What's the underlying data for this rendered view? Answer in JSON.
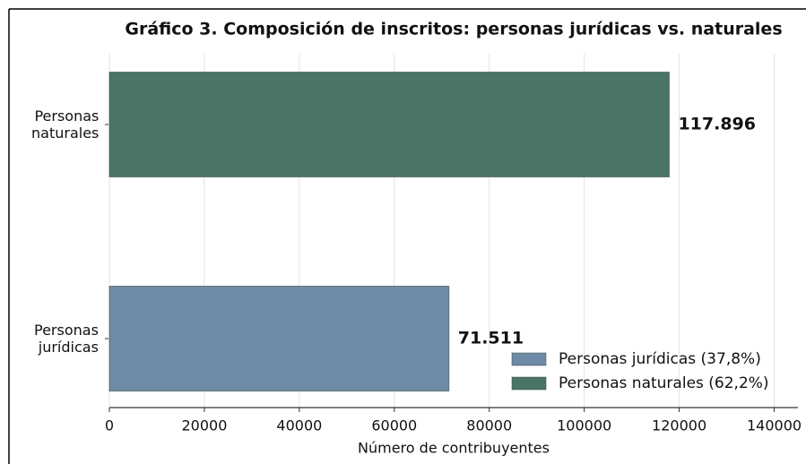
{
  "chart_data": {
    "type": "barh",
    "title": "Gráfico 3. Composición de inscritos: personas jurídicas vs. naturales",
    "categories": [
      "Personas jurídicas",
      "Personas naturales"
    ],
    "values": [
      71511,
      117896
    ],
    "value_labels": [
      "71.511",
      "117.896"
    ],
    "colors": [
      "#6f8aa6",
      "#4a7566"
    ],
    "legend": [
      "Personas jurídicas (37,8%)",
      "Personas naturales (62,2%)"
    ],
    "xlabel": "Número de contribuyentes",
    "xlim": [
      0,
      145000
    ],
    "xticks": [
      0,
      20000,
      40000,
      60000,
      80000,
      100000,
      120000,
      140000
    ],
    "grid": true
  }
}
